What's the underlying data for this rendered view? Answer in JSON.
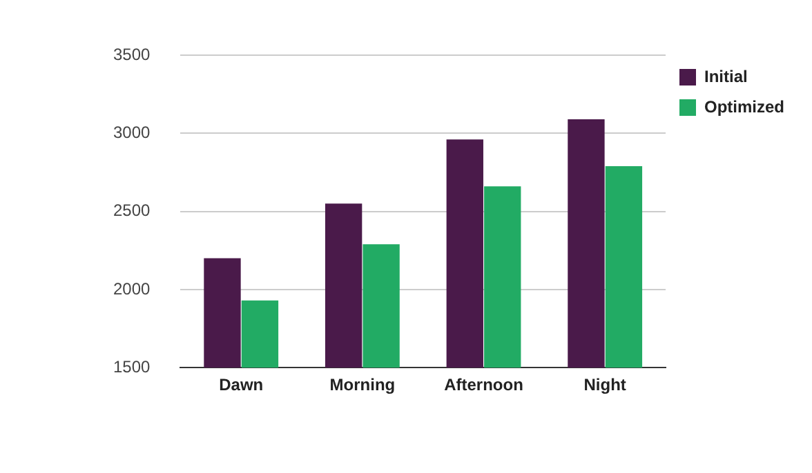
{
  "chart_data": {
    "type": "bar",
    "categories": [
      "Dawn",
      "Morning",
      "Afternoon",
      "Night"
    ],
    "series": [
      {
        "name": "Initial",
        "color": "#4a1a4a",
        "values": [
          2200,
          2550,
          2960,
          3090
        ]
      },
      {
        "name": "Optimized",
        "color": "#22ab64",
        "values": [
          1930,
          2290,
          2660,
          2790
        ]
      }
    ],
    "ylim": [
      1500,
      3500
    ],
    "yticks": [
      1500,
      2000,
      2500,
      3000,
      3500
    ],
    "grid": "y",
    "legend": "top right"
  }
}
